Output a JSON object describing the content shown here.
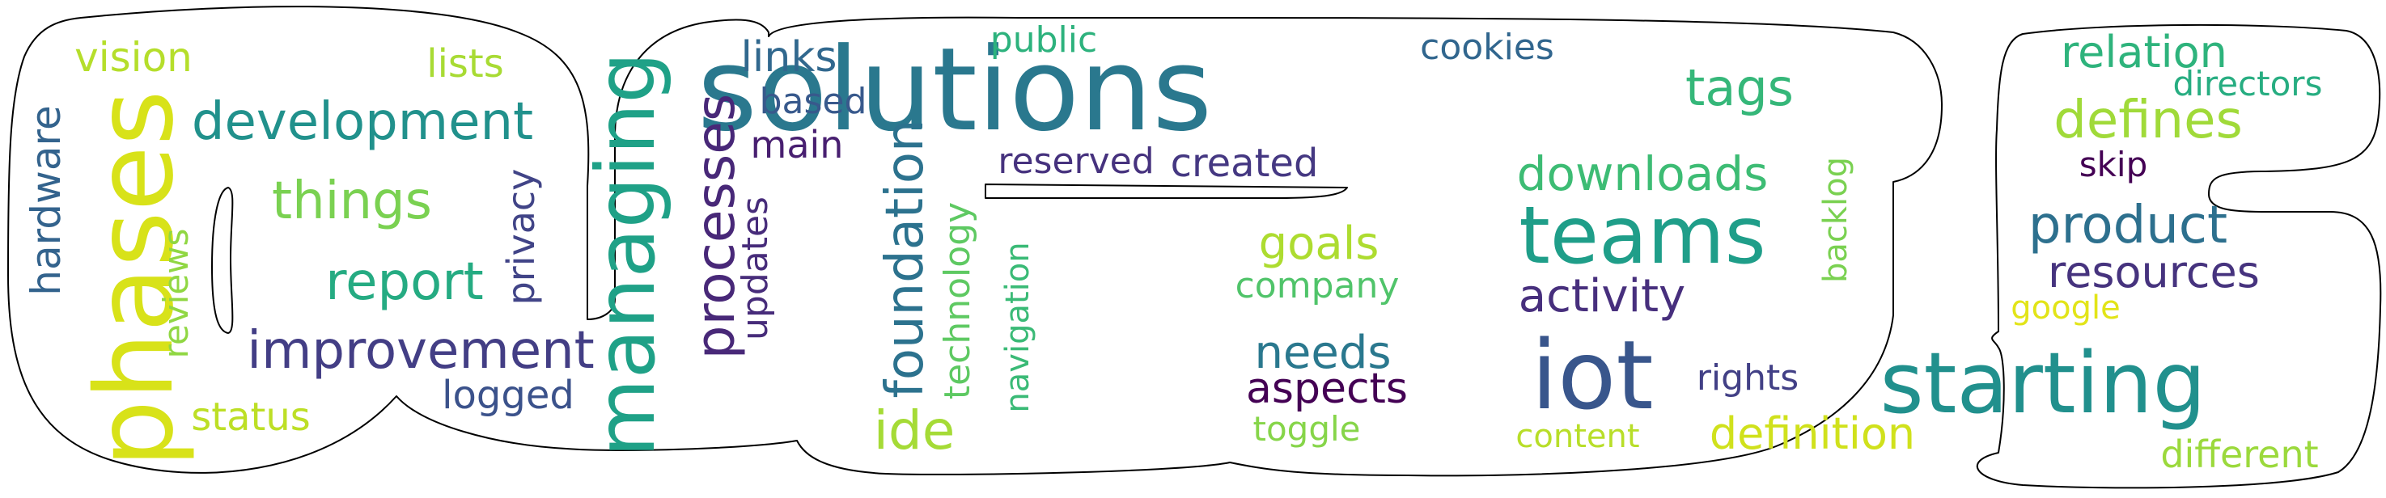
{
  "words": [
    {
      "id": "solutions",
      "text": "solutions",
      "color": "#2a788e"
    },
    {
      "id": "phases",
      "text": "phases",
      "color": "#d8e219"
    },
    {
      "id": "managing",
      "text": "managing",
      "color": "#1fa187"
    },
    {
      "id": "teams",
      "text": "teams",
      "color": "#1f9e89"
    },
    {
      "id": "iot",
      "text": "iot",
      "color": "#39568c"
    },
    {
      "id": "starting",
      "text": "starting",
      "color": "#21908d"
    },
    {
      "id": "development",
      "text": "development",
      "color": "#21918c"
    },
    {
      "id": "processes",
      "text": "processes",
      "color": "#482878"
    },
    {
      "id": "foundation",
      "text": "foundation",
      "color": "#2c728e"
    },
    {
      "id": "improvement",
      "text": "improvement",
      "color": "#433e85"
    },
    {
      "id": "things",
      "text": "things",
      "color": "#7ad151"
    },
    {
      "id": "report",
      "text": "report",
      "color": "#25ab82"
    },
    {
      "id": "product",
      "text": "product",
      "color": "#2d708e"
    },
    {
      "id": "defines",
      "text": "defines",
      "color": "#a0da39"
    },
    {
      "id": "downloads",
      "text": "downloads",
      "color": "#3dbc74"
    },
    {
      "id": "tags",
      "text": "tags",
      "color": "#35b779"
    },
    {
      "id": "resources",
      "text": "resources",
      "color": "#46337e"
    },
    {
      "id": "activity",
      "text": "activity",
      "color": "#472f7d"
    },
    {
      "id": "goals",
      "text": "goals",
      "color": "#addc30"
    },
    {
      "id": "needs",
      "text": "needs",
      "color": "#2a788e"
    },
    {
      "id": "aspects",
      "text": "aspects",
      "color": "#440154"
    },
    {
      "id": "definition",
      "text": "definition",
      "color": "#d0e11c"
    },
    {
      "id": "ide",
      "text": "ide",
      "color": "#a5db36"
    },
    {
      "id": "vision",
      "text": "vision",
      "color": "#b5de2b"
    },
    {
      "id": "lists",
      "text": "lists",
      "color": "#a8db34"
    },
    {
      "id": "hardware",
      "text": "hardware",
      "color": "#33638d"
    },
    {
      "id": "reviews",
      "text": "reviews",
      "color": "#90d743"
    },
    {
      "id": "status",
      "text": "status",
      "color": "#bddf26"
    },
    {
      "id": "privacy",
      "text": "privacy",
      "color": "#414487"
    },
    {
      "id": "logged",
      "text": "logged",
      "color": "#3b528b"
    },
    {
      "id": "links",
      "text": "links",
      "color": "#31688e"
    },
    {
      "id": "based",
      "text": "based",
      "color": "#38598c"
    },
    {
      "id": "main",
      "text": "main",
      "color": "#481f70"
    },
    {
      "id": "updates",
      "text": "updates",
      "color": "#472c7a"
    },
    {
      "id": "technology",
      "text": "technology",
      "color": "#5ec962"
    },
    {
      "id": "navigation",
      "text": "navigation",
      "color": "#3aba76"
    },
    {
      "id": "reserved",
      "text": "reserved",
      "color": "#46327e"
    },
    {
      "id": "created",
      "text": "created",
      "color": "#453882"
    },
    {
      "id": "public",
      "text": "public",
      "color": "#2db27d"
    },
    {
      "id": "cookies",
      "text": "cookies",
      "color": "#31668e"
    },
    {
      "id": "company",
      "text": "company",
      "color": "#50c46a"
    },
    {
      "id": "toggle",
      "text": "toggle",
      "color": "#86d549"
    },
    {
      "id": "rights",
      "text": "rights",
      "color": "#424086"
    },
    {
      "id": "content",
      "text": "content",
      "color": "#b8de29"
    },
    {
      "id": "backlog",
      "text": "backlog",
      "color": "#7ad151"
    },
    {
      "id": "relation",
      "text": "relation",
      "color": "#2eb37c"
    },
    {
      "id": "directors",
      "text": "directors",
      "color": "#27ad81"
    },
    {
      "id": "skip",
      "text": "skip",
      "color": "#440154"
    },
    {
      "id": "google",
      "text": "google",
      "color": "#e2e418"
    },
    {
      "id": "different",
      "text": "different",
      "color": "#9bd93c"
    }
  ]
}
